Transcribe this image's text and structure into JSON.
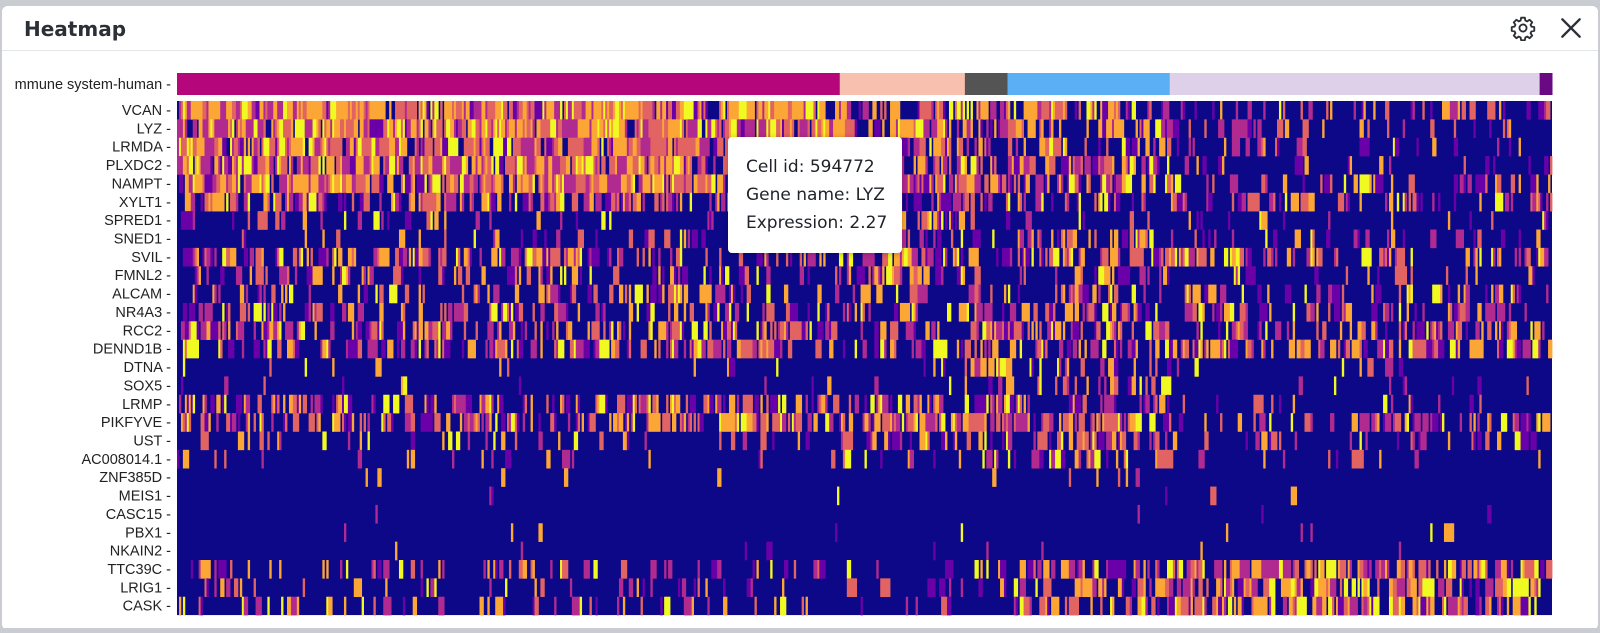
{
  "window": {
    "title": "Heatmap",
    "settings_icon": "gear-icon",
    "close_icon": "close-icon"
  },
  "tooltip": {
    "cell_id": "Cell id: 594772",
    "gene_name": "Gene name: LYZ",
    "expression": "Expression: 2.27"
  },
  "chart_data": {
    "type": "heatmap",
    "annotation_track": {
      "label": "mmune system-human",
      "groups": [
        {
          "color": "#b5077b",
          "fraction": 0.482
        },
        {
          "color": "#f8c0ae",
          "fraction": 0.091
        },
        {
          "color": "#545454",
          "fraction": 0.031
        },
        {
          "color": "#5aaff5",
          "fraction": 0.118
        },
        {
          "color": "#ddd0e8",
          "fraction": 0.269
        },
        {
          "color": "#6a0a82",
          "fraction": 0.009
        }
      ]
    },
    "genes": [
      "VCAN",
      "LYZ",
      "LRMDA",
      "PLXDC2",
      "NAMPT",
      "XYLT1",
      "SPRED1",
      "SNED1",
      "SVIL",
      "FMNL2",
      "ALCAM",
      "NR4A3",
      "RCC2",
      "DENND1B",
      "DTNA",
      "SOX5",
      "LRMP",
      "PIKFYVE",
      "UST",
      "AC008014.1",
      "ZNF385D",
      "MEIS1",
      "CASC15",
      "PBX1",
      "NKAIN2",
      "TTC39C",
      "LRIG1",
      "CASK"
    ],
    "expression_level_by_group": [
      [
        0.85,
        0.65,
        0.5,
        0.55,
        0.2,
        0.1
      ],
      [
        0.85,
        0.6,
        0.45,
        0.5,
        0.15,
        0.1
      ],
      [
        0.8,
        0.6,
        0.4,
        0.45,
        0.1,
        0.1
      ],
      [
        0.8,
        0.55,
        0.4,
        0.45,
        0.1,
        0.1
      ],
      [
        0.8,
        0.6,
        0.5,
        0.5,
        0.25,
        0.4
      ],
      [
        0.4,
        0.35,
        0.3,
        0.35,
        0.3,
        0.3
      ],
      [
        0.1,
        0.4,
        0.1,
        0.15,
        0.1,
        0.1
      ],
      [
        0.1,
        0.4,
        0.1,
        0.2,
        0.15,
        0.1
      ],
      [
        0.4,
        0.5,
        0.2,
        0.35,
        0.4,
        0.3
      ],
      [
        0.2,
        0.45,
        0.1,
        0.2,
        0.1,
        0.1
      ],
      [
        0.25,
        0.3,
        0.4,
        0.3,
        0.2,
        0.1
      ],
      [
        0.3,
        0.3,
        0.5,
        0.3,
        0.25,
        0.1
      ],
      [
        0.4,
        0.3,
        0.5,
        0.35,
        0.3,
        0.1
      ],
      [
        0.4,
        0.3,
        0.4,
        0.4,
        0.5,
        0.4
      ],
      [
        0.05,
        0.05,
        0.4,
        0.2,
        0.03,
        0.05
      ],
      [
        0.03,
        0.03,
        0.2,
        0.15,
        0.03,
        0.03
      ],
      [
        0.4,
        0.3,
        0.3,
        0.4,
        0.05,
        0.05
      ],
      [
        0.45,
        0.5,
        0.4,
        0.5,
        0.3,
        0.1
      ],
      [
        0.1,
        0.3,
        0.2,
        0.4,
        0.15,
        0.1
      ],
      [
        0.05,
        0.05,
        0.4,
        0.3,
        0.03,
        0.03
      ],
      [
        0.01,
        0.01,
        0.01,
        0.02,
        0.01,
        0.01
      ],
      [
        0.01,
        0.02,
        0.03,
        0.03,
        0.01,
        0.01
      ],
      [
        0.01,
        0.01,
        0.01,
        0.02,
        0.01,
        0.01
      ],
      [
        0.01,
        0.02,
        0.01,
        0.02,
        0.01,
        0.01
      ],
      [
        0.01,
        0.01,
        0.01,
        0.01,
        0.01,
        0.01
      ],
      [
        0.2,
        0.15,
        0.1,
        0.5,
        0.65,
        0.3
      ],
      [
        0.1,
        0.1,
        0.1,
        0.4,
        0.5,
        0.2
      ],
      [
        0.15,
        0.15,
        0.1,
        0.4,
        0.55,
        0.2
      ]
    ],
    "colorscale": [
      "#0d0887",
      "#6a00a8",
      "#b12a90",
      "#e16462",
      "#fca636",
      "#f0f921"
    ],
    "columns": 700,
    "seed": 594772
  }
}
